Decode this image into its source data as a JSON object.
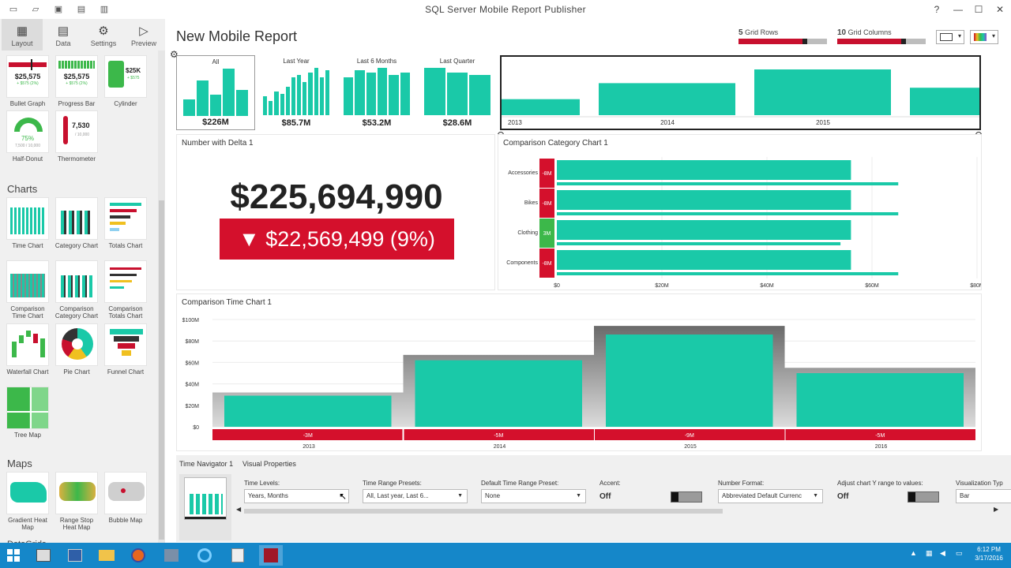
{
  "window": {
    "title": "SQL Server Mobile Report Publisher",
    "help": "?",
    "minimize": "—",
    "maximize": "☐",
    "close": "✕"
  },
  "toolbar": {
    "layout": "Layout",
    "data": "Data",
    "settings": "Settings",
    "preview": "Preview"
  },
  "sidebar": {
    "top_tiles": [
      {
        "label": "Bullet Graph",
        "value": "$25,575",
        "sub": "+ $575 (2%)"
      },
      {
        "label": "Progress Bar",
        "value": "$25,575",
        "sub": "+ $575 (2%)"
      },
      {
        "label": "Cylinder",
        "value": "$25K",
        "sub": "+ $575"
      },
      {
        "label": "Half-Donut",
        "value": "75%",
        "sub": "7,500 / 10,000"
      },
      {
        "label": "Thermometer",
        "value": "7,530",
        "sub": "/ 10,000"
      }
    ],
    "charts_header": "Charts",
    "chart_tiles": [
      {
        "label": "Time Chart"
      },
      {
        "label": "Category Chart"
      },
      {
        "label": "Totals Chart"
      },
      {
        "label": "Comparison Time Chart"
      },
      {
        "label": "Comparison Category Chart"
      },
      {
        "label": "Comparison Totals Chart"
      },
      {
        "label": "Waterfall Chart"
      },
      {
        "label": "Pie Chart"
      },
      {
        "label": "Funnel Chart"
      },
      {
        "label": "Tree Map"
      }
    ],
    "maps_header": "Maps",
    "map_tiles": [
      {
        "label": "Gradient Heat Map"
      },
      {
        "label": "Range Stop Heat Map"
      },
      {
        "label": "Bubble Map"
      }
    ],
    "next_header": "DataGrids"
  },
  "report": {
    "title": "New Mobile Report"
  },
  "grid": {
    "rows_value": "5",
    "rows_label": "Grid Rows",
    "rows_fill": 0.78,
    "cols_value": "10",
    "cols_label": "Grid Columns",
    "cols_fill": 0.78
  },
  "navigator": {
    "tiles": [
      {
        "label": "All",
        "value": "$226M",
        "bars": [
          0.35,
          0.75,
          0.45,
          1.0,
          0.55
        ]
      },
      {
        "label": "Last Year",
        "value": "$85.7M",
        "bars": [
          0.4,
          0.3,
          0.5,
          0.45,
          0.6,
          0.8,
          0.85,
          0.7,
          0.9,
          1.0,
          0.8,
          0.95
        ]
      },
      {
        "label": "Last 6 Months",
        "value": "$53.2M",
        "bars": [
          0.8,
          0.95,
          0.9,
          1.0,
          0.85,
          0.9
        ]
      },
      {
        "label": "Last Quarter",
        "value": "$28.6M",
        "bars": [
          1.0,
          0.9,
          0.85
        ]
      }
    ],
    "timeline_years": [
      "2013",
      "2014",
      "2015"
    ],
    "timeline_values": [
      0.35,
      0.7,
      1.0,
      0.6
    ]
  },
  "number_delta": {
    "title": "Number with Delta 1",
    "value": "$225,694,990",
    "delta": "▼ $22,569,499 (9%)"
  },
  "comparison_category": {
    "title": "Comparison Category Chart 1",
    "categories": [
      "Accessories",
      "Bikes",
      "Clothing",
      "Components"
    ],
    "deltas": [
      "-8M",
      "-8M",
      "3M",
      "-8M"
    ],
    "delta_colors": [
      "#d4102c",
      "#d4102c",
      "#3cb84a",
      "#d4102c"
    ],
    "main_values": [
      56,
      56,
      56,
      56
    ],
    "target_values": [
      65,
      65,
      54,
      65
    ],
    "x_ticks": [
      "$0",
      "$20M",
      "$40M",
      "$60M",
      "$80M"
    ],
    "xlim": [
      0,
      80
    ]
  },
  "comparison_time": {
    "title": "Comparison Time Chart 1",
    "y_ticks": [
      "$100M",
      "$80M",
      "$60M",
      "$40M",
      "$20M",
      "$0"
    ],
    "ylim": [
      0,
      100
    ],
    "years": [
      "2013",
      "2014",
      "2015",
      "2016"
    ],
    "actual": [
      29,
      62,
      86,
      50
    ],
    "target": [
      32,
      67,
      94,
      55
    ],
    "deltas": [
      "-3M",
      "-5M",
      "-9M",
      "-5M"
    ]
  },
  "properties": {
    "tab_active": "Time Navigator 1",
    "tab2": "Visual Properties",
    "time_levels_label": "Time Levels:",
    "time_levels_value": "Years, Months",
    "range_presets_label": "Time Range Presets:",
    "range_presets_value": "All, Last year, Last 6...",
    "default_preset_label": "Default Time Range Preset:",
    "default_preset_value": "None",
    "accent_label": "Accent:",
    "accent_value": "Off",
    "number_format_label": "Number Format:",
    "number_format_value": "Abbreviated Default Currenc",
    "adjust_label": "Adjust chart Y range to values:",
    "adjust_value": "Off",
    "viz_type_label": "Visualization Typ",
    "viz_type_value": "Bar"
  },
  "taskbar": {
    "time": "6:12 PM",
    "date": "3/17/2016"
  },
  "colors": {
    "teal": "#1ac9a8",
    "red": "#d4102c",
    "green": "#3cb84a",
    "gray": "#8a8a8a"
  }
}
